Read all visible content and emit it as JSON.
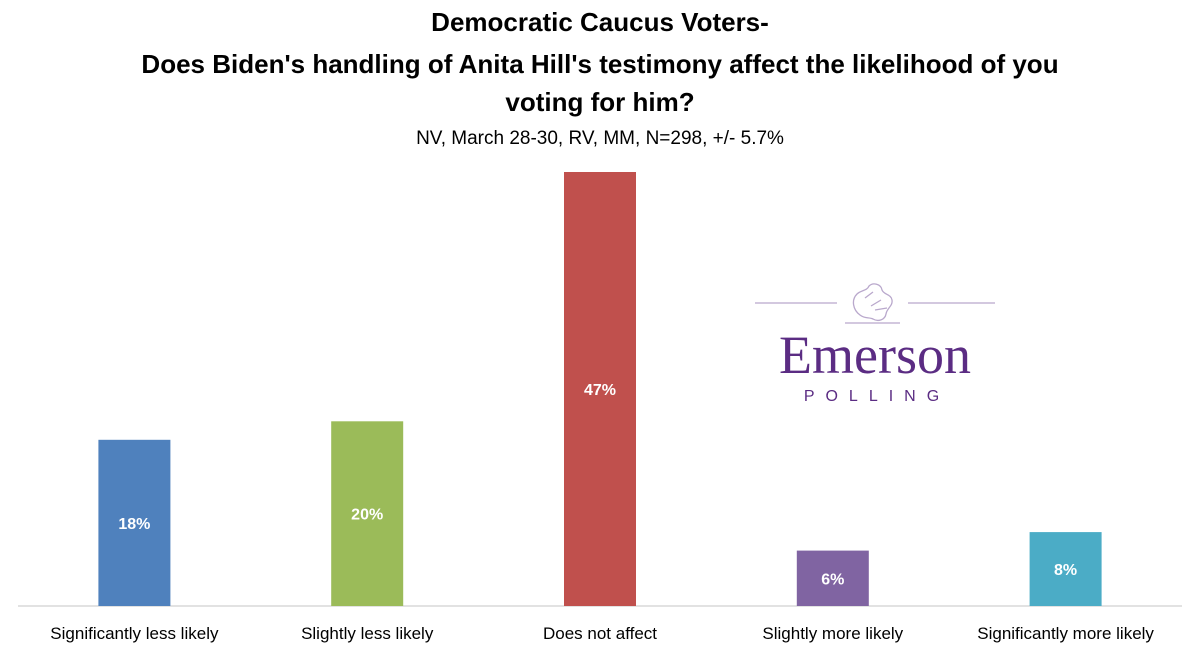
{
  "chart_data": {
    "type": "bar",
    "title_lines": [
      "Democratic Caucus Voters-",
      "Does Biden's handling of Anita Hill's testimony affect the likelihood of you",
      "voting for him?"
    ],
    "subtitle": "NV, March 28-30, RV, MM, N=298, +/- 5.7%",
    "categories": [
      "Significantly less likely",
      "Slightly less likely",
      "Does not affect",
      "Slightly more likely",
      "Significantly more likely"
    ],
    "values": [
      18,
      20,
      47,
      6,
      8
    ],
    "value_labels": [
      "18%",
      "20%",
      "47%",
      "6%",
      "8%"
    ],
    "colors": [
      "#4F81BD",
      "#9BBB59",
      "#C0504D",
      "#8064A2",
      "#4BACC6"
    ],
    "ylim": [
      0,
      47
    ],
    "grid": false,
    "legend": "none"
  },
  "logo": {
    "name": "Emerson",
    "tagline": "POLLING",
    "color": "#5B2C83"
  }
}
